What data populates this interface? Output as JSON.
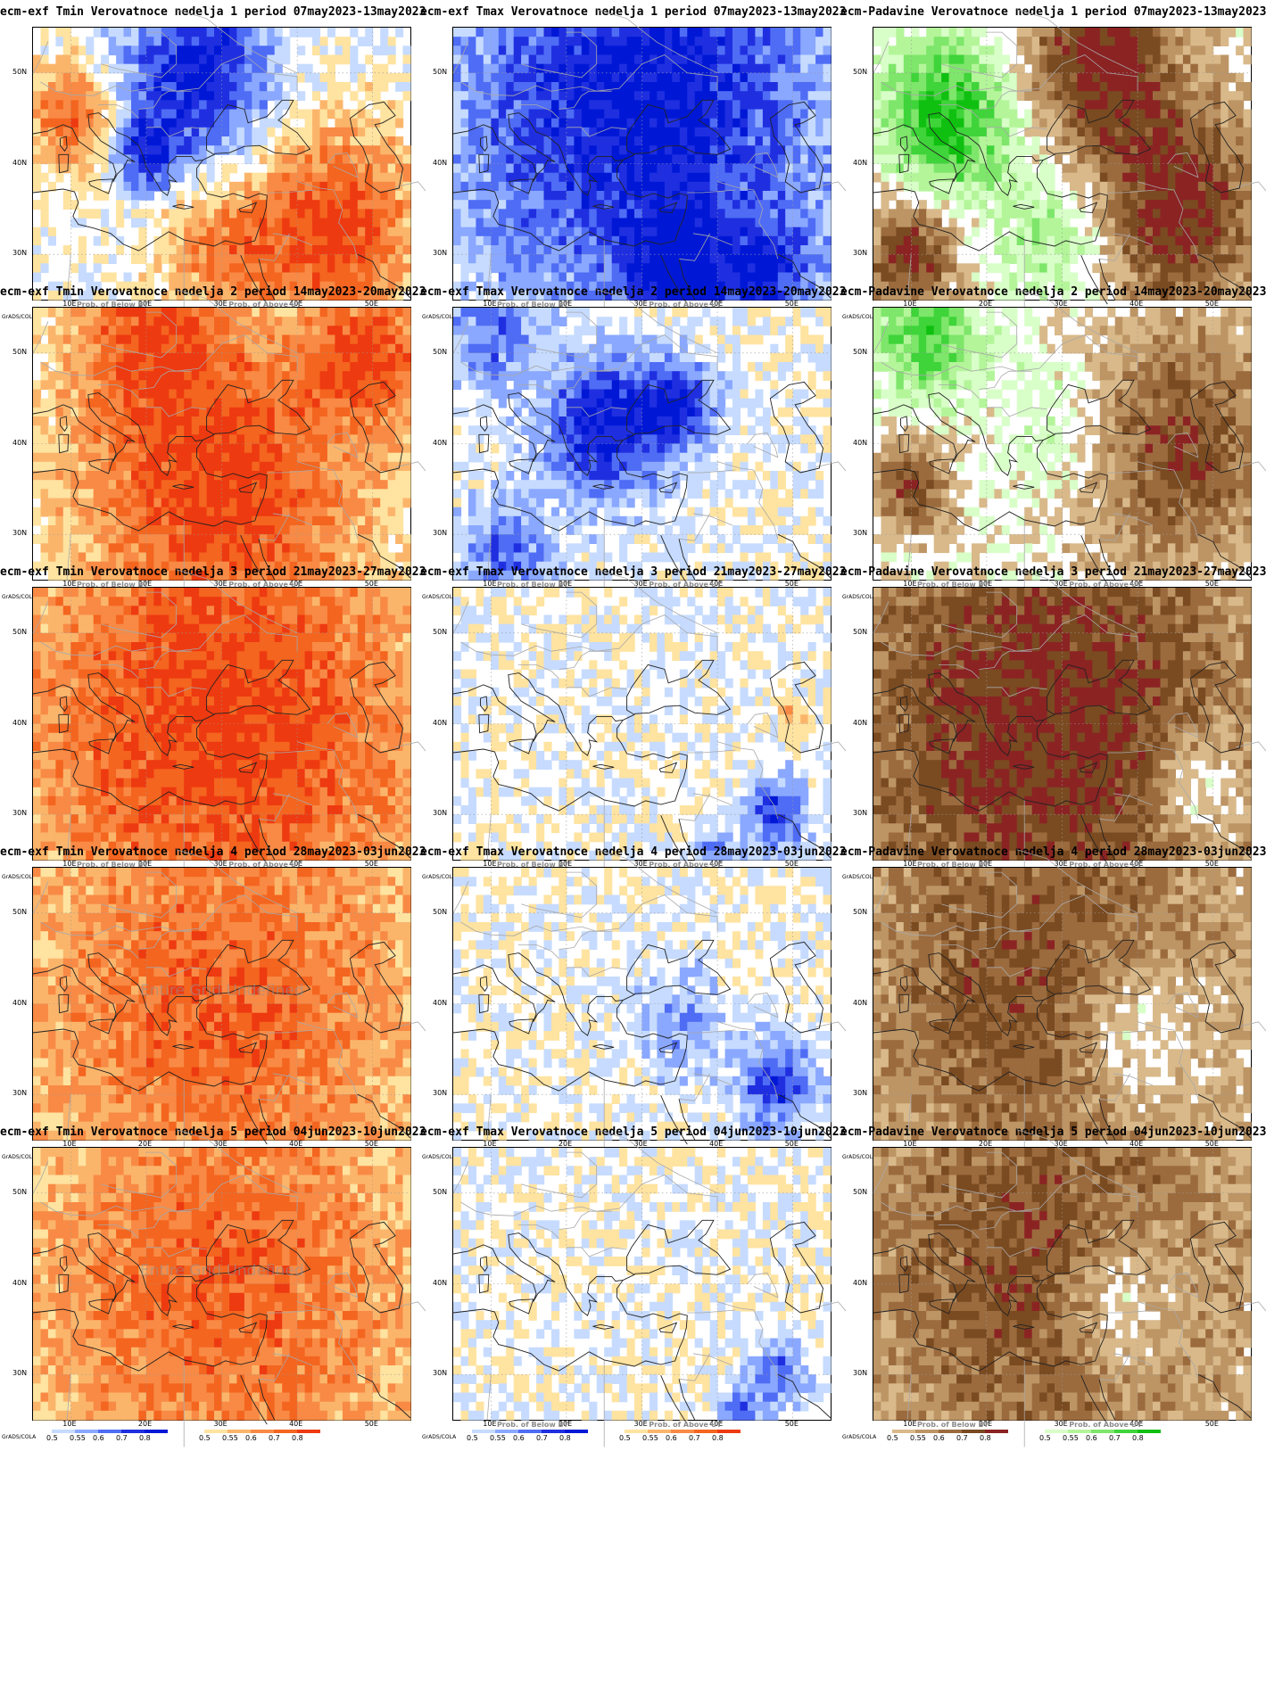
{
  "panels": [
    {
      "title": "ecm-exf Tmin Verovatnoce nedelja 1 period 07may2023-13may2023",
      "kind": "tmin",
      "legend": {
        "left_title": "Prob. of Below BT",
        "right_title": "Prob. of Above UT",
        "grads": "GrADS/COLA"
      }
    },
    {
      "title": "ecm-exf Tmax Verovatnoce nedelja 1 period 07may2023-13may2023",
      "kind": "tmax",
      "legend": {
        "left_title": "Prob. of Below BT",
        "right_title": "Prob. of Above UT",
        "grads": "GrADS/COLA"
      }
    },
    {
      "title": "ecm-Padavine Verovatnoce nedelja 1 period 07may2023-13may2023",
      "kind": "padavine",
      "legend": {
        "left_title": "",
        "right_title": "",
        "grads": "GrADS/COLA"
      }
    },
    {
      "title": "ecm-exf Tmin Verovatnoce nedelja 2 period 14may2023-20may2023",
      "kind": "tmin",
      "legend": {
        "left_title": "Prob. of Below BT",
        "right_title": "Prob. of Above UT",
        "grads": "GrADS/COLA"
      }
    },
    {
      "title": "ecm-exf Tmax Verovatnoce nedelja 2 period 14may2023-20may2023",
      "kind": "tmax",
      "legend": {
        "left_title": "Prob. of Below BT",
        "right_title": "Prob. of Above UT",
        "grads": "GrADS/COLA"
      }
    },
    {
      "title": "ecm-Padavine Verovatnoce nedelja 2 period 14may2023-20may2023",
      "kind": "padavine",
      "legend": {
        "left_title": "Prob. of Below BT",
        "right_title": "Prob. of Above UT",
        "grads": "GrADS/COLA"
      }
    },
    {
      "title": "ecm-exf Tmin Verovatnoce nedelja 3 period 21may2023-27may2023",
      "kind": "tmin",
      "legend": {
        "left_title": "Prob. of Below BT",
        "right_title": "Prob. of Above UT",
        "grads": "GrADS/COLA"
      }
    },
    {
      "title": "ecm-exf Tmax Verovatnoce nedelja 3 period 21may2023-27may2023",
      "kind": "tmax",
      "legend": {
        "left_title": "Prob. of Below BT",
        "right_title": "Prob. of Above UT",
        "grads": "GrADS/COLA"
      }
    },
    {
      "title": "ecm-Padavine Verovatnoce nedelja 3 period 21may2023-27may2023",
      "kind": "padavine",
      "legend": {
        "left_title": "Prob. of Below BT",
        "right_title": "Prob. of Above UT",
        "grads": "GrADS/COLA"
      }
    },
    {
      "title": "ecm-exf Tmin Verovatnoce nedelja 4 period 28may2023-03jun2023",
      "kind": "tmin",
      "undefined_text": "Entire Grid Undefined",
      "legend": {
        "left_title": "",
        "right_title": "",
        "grads": "GrADS/COLA"
      }
    },
    {
      "title": "ecm-exf Tmax Verovatnoce nedelja 4 period 28may2023-03jun2023",
      "kind": "tmax",
      "legend": {
        "left_title": "",
        "right_title": "",
        "grads": "GrADS/COLA"
      }
    },
    {
      "title": "ecm-Padavine Verovatnoce nedelja 4 period 28may2023-03jun2023",
      "kind": "padavine",
      "legend": {
        "left_title": "",
        "right_title": "",
        "grads": "GrADS/COLA"
      }
    },
    {
      "title": "ecm-exf Tmin Verovatnoce nedelja 5 period 04jun2023-10jun2023",
      "kind": "tmin",
      "undefined_text": "Entire Grid Undefined",
      "legend": {
        "left_title": "",
        "right_title": "",
        "grads": "GrADS/COLA"
      }
    },
    {
      "title": "ecm-exf Tmax Verovatnoce nedelja 5 period 04jun2023-10jun2023",
      "kind": "tmax",
      "legend": {
        "left_title": "Prob. of Below BT",
        "right_title": "Prob. of Above UT",
        "grads": "GrADS/COLA"
      }
    },
    {
      "title": "ecm-Padavine Verovatnoce nedelja 5 period 04jun2023-10jun2023",
      "kind": "padavine",
      "legend": {
        "left_title": "Prob. of Below BT",
        "right_title": "Prob. of Above UT",
        "grads": "GrADS/COLA"
      }
    }
  ],
  "axes": {
    "lat_labels": [
      "50N",
      "40N",
      "30N"
    ],
    "lon_labels": [
      "10E",
      "20E",
      "30E",
      "40E",
      "50E"
    ]
  },
  "legend_ticks": {
    "left": [
      "0.5",
      "0.55",
      "0.6",
      "0.7",
      "0.8"
    ],
    "right": [
      "0.5",
      "0.55",
      "0.6",
      "0.7",
      "0.8"
    ]
  },
  "colors": {
    "below_temp": [
      "#c6dbff",
      "#8aa8ff",
      "#4f6cf5",
      "#1f2fe0",
      "#0018d6"
    ],
    "above_temp": [
      "#ffe3a0",
      "#fbb56b",
      "#f88a45",
      "#f4651f",
      "#ee3a10"
    ],
    "below_precip": [
      "#d9b98a",
      "#bd9565",
      "#9b6b3e",
      "#7a4a21",
      "#8b2323"
    ],
    "above_precip": [
      "#d8ffc8",
      "#b4f59a",
      "#7ee66a",
      "#3fd43a",
      "#10c010"
    ]
  }
}
